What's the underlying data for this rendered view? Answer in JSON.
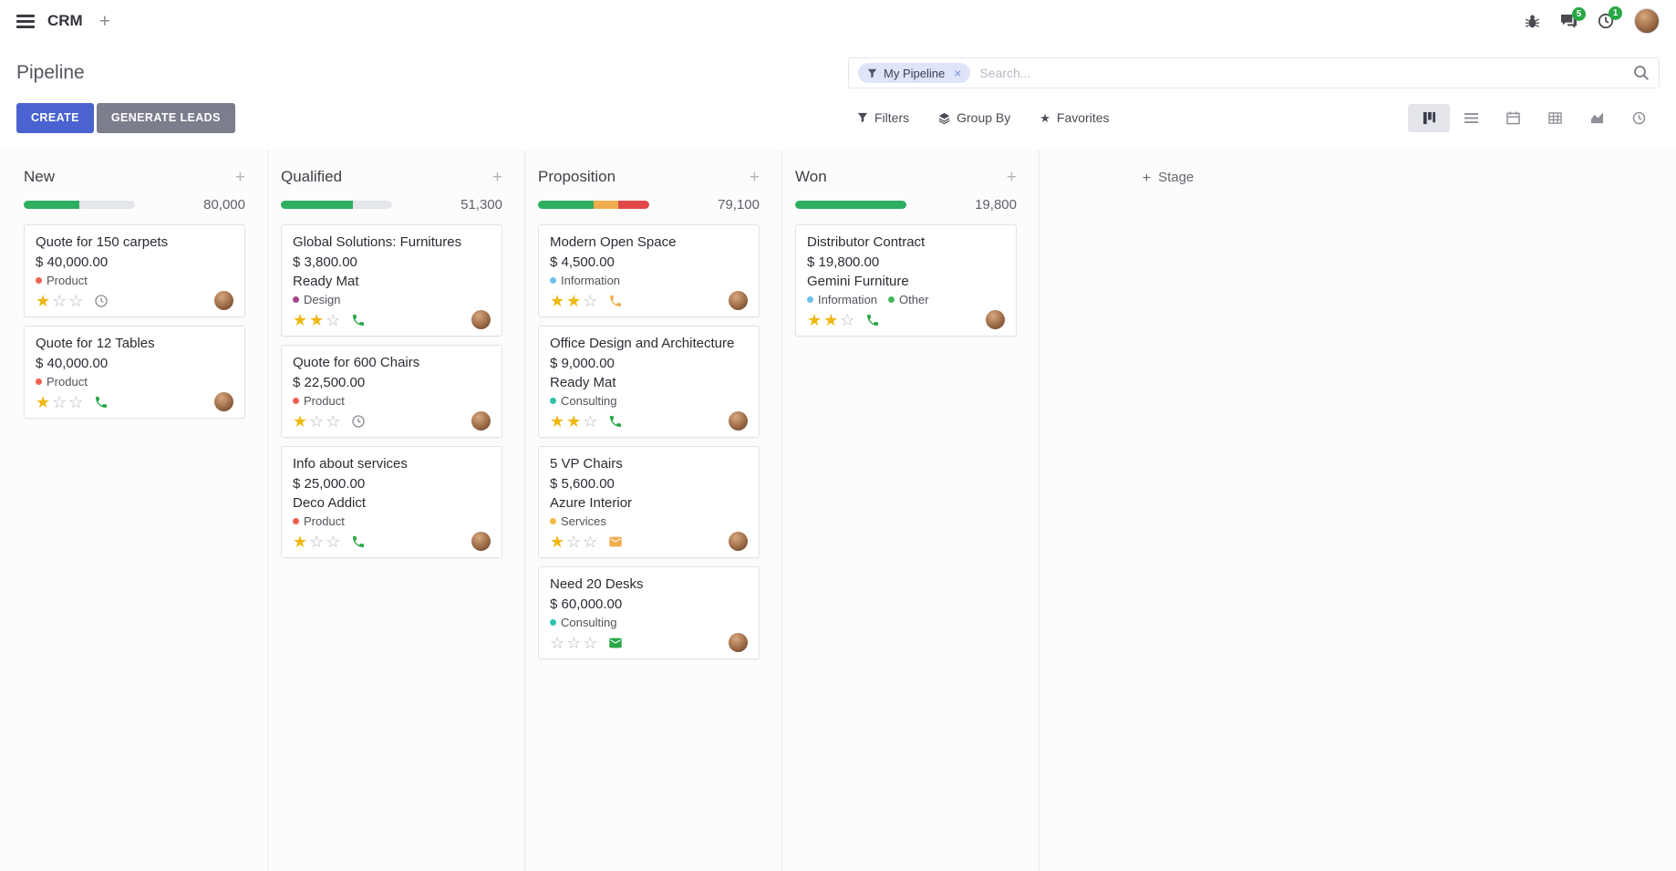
{
  "navbar": {
    "app": "CRM",
    "messages_badge": "5",
    "activities_badge": "1"
  },
  "control_panel": {
    "breadcrumb": "Pipeline",
    "search": {
      "facet_label": "My Pipeline",
      "placeholder": "Search...",
      "remove_glyph": "×"
    },
    "create_label": "CREATE",
    "generate_leads_label": "GENERATE LEADS",
    "filters_label": "Filters",
    "group_by_label": "Group By",
    "favorites_label": "Favorites"
  },
  "view_switcher_icons": [
    "kanban",
    "list",
    "calendar",
    "pivot",
    "graph",
    "activity"
  ],
  "colors": {
    "primary": "#4a63d0",
    "secondary": "#7c7d8d",
    "success": "#28a745",
    "warning": "#f0ad4e",
    "danger": "#e04848",
    "star_filled": "#efb810",
    "progress_green": "#2eae60"
  },
  "board": {
    "add_stage_label": "Stage",
    "columns": [
      {
        "name": "New",
        "total": "80,000",
        "progress": [
          {
            "color": "#2eae60",
            "pct": 50
          }
        ],
        "cards": [
          {
            "title": "Quote for 150 carpets",
            "amount": "$ 40,000.00",
            "partner": null,
            "tags": [
              {
                "label": "Product",
                "color": "#f06050"
              }
            ],
            "stars": 1,
            "activity": {
              "icon": "clock",
              "color": "#8b8d94"
            }
          },
          {
            "title": "Quote for 12 Tables",
            "amount": "$ 40,000.00",
            "partner": null,
            "tags": [
              {
                "label": "Product",
                "color": "#f06050"
              }
            ],
            "stars": 1,
            "activity": {
              "icon": "phone",
              "color": "#28a745"
            }
          }
        ]
      },
      {
        "name": "Qualified",
        "total": "51,300",
        "progress": [
          {
            "color": "#2eae60",
            "pct": 65
          }
        ],
        "cards": [
          {
            "title": "Global Solutions: Furnitures",
            "amount": "$ 3,800.00",
            "partner": "Ready Mat",
            "tags": [
              {
                "label": "Design",
                "color": "#a24689"
              }
            ],
            "stars": 2,
            "activity": {
              "icon": "phone",
              "color": "#28a745"
            }
          },
          {
            "title": "Quote for 600 Chairs",
            "amount": "$ 22,500.00",
            "partner": null,
            "tags": [
              {
                "label": "Product",
                "color": "#f06050"
              }
            ],
            "stars": 1,
            "activity": {
              "icon": "clock",
              "color": "#8b8d94"
            }
          },
          {
            "title": "Info about services",
            "amount": "$ 25,000.00",
            "partner": "Deco Addict",
            "tags": [
              {
                "label": "Product",
                "color": "#f06050"
              }
            ],
            "stars": 1,
            "activity": {
              "icon": "phone",
              "color": "#28a745"
            }
          }
        ]
      },
      {
        "name": "Proposition",
        "total": "79,100",
        "progress": [
          {
            "color": "#2eae60",
            "pct": 50
          },
          {
            "color": "#f0ad4e",
            "pct": 22
          },
          {
            "color": "#e04848",
            "pct": 28
          }
        ],
        "cards": [
          {
            "title": "Modern Open Space",
            "amount": "$ 4,500.00",
            "partner": null,
            "tags": [
              {
                "label": "Information",
                "color": "#6cc1ed"
              }
            ],
            "stars": 2,
            "activity": {
              "icon": "phone",
              "color": "#f0ad4e"
            }
          },
          {
            "title": "Office Design and Architecture",
            "amount": "$ 9,000.00",
            "partner": "Ready Mat",
            "tags": [
              {
                "label": "Consulting",
                "color": "#2ec1ac"
              }
            ],
            "stars": 2,
            "activity": {
              "icon": "phone",
              "color": "#28a745"
            }
          },
          {
            "title": "5 VP Chairs",
            "amount": "$ 5,600.00",
            "partner": "Azure Interior",
            "tags": [
              {
                "label": "Services",
                "color": "#f2ba41"
              }
            ],
            "stars": 1,
            "activity": {
              "icon": "envelope",
              "color": "#f0ad4e"
            }
          },
          {
            "title": "Need 20 Desks",
            "amount": "$ 60,000.00",
            "partner": null,
            "tags": [
              {
                "label": "Consulting",
                "color": "#2ec1ac"
              }
            ],
            "stars": 0,
            "activity": {
              "icon": "envelope",
              "color": "#28a745"
            }
          }
        ]
      },
      {
        "name": "Won",
        "total": "19,800",
        "progress": [
          {
            "color": "#2eae60",
            "pct": 100
          }
        ],
        "cards": [
          {
            "title": "Distributor Contract",
            "amount": "$ 19,800.00",
            "partner": "Gemini Furniture",
            "tags": [
              {
                "label": "Information",
                "color": "#6cc1ed"
              },
              {
                "label": "Other",
                "color": "#45b657"
              }
            ],
            "stars": 2,
            "activity": {
              "icon": "phone",
              "color": "#28a745"
            }
          }
        ]
      }
    ]
  }
}
